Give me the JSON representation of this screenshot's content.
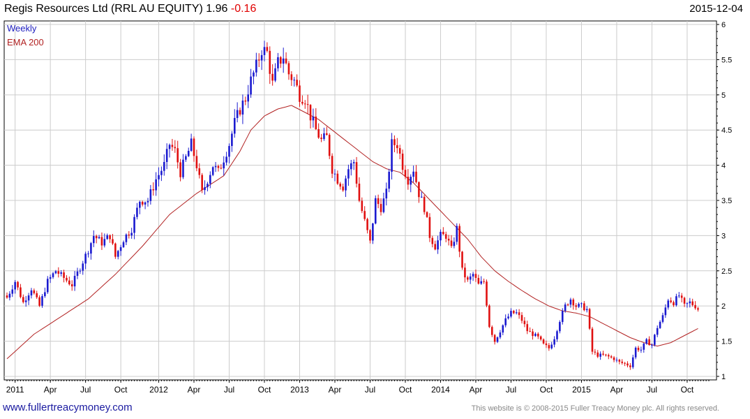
{
  "header": {
    "title": "Regis Resources Ltd (RRL AU EQUITY) 1.96",
    "change": "-0.16",
    "date": "2015-12-04"
  },
  "footer": {
    "link": "www.fullertreacymoney.com",
    "copyright": "This website is © 2008-2015 Fuller Treacy Money plc. All rights reserved."
  },
  "chart_data": {
    "type": "candlestick",
    "title": "Regis Resources Ltd (RRL AU EQUITY) 1.96 -0.16",
    "legend": [
      "Weekly",
      "EMA 200"
    ],
    "legend_placement": "top-left",
    "ylim": [
      0.95,
      6.05
    ],
    "y_ticks": [
      1,
      1.5,
      2,
      2.5,
      3,
      3.5,
      4,
      4.5,
      5,
      5.5,
      6
    ],
    "y_tick_labels": [
      "1",
      "1.5",
      "2",
      "2.5",
      "3",
      "3.5",
      "4",
      "4.5",
      "5",
      "5.5",
      "6"
    ],
    "x_range_weeks": [
      0,
      259
    ],
    "x_ticks": [
      {
        "label": "2011",
        "week": 3
      },
      {
        "label": "Apr",
        "week": 16
      },
      {
        "label": "Jul",
        "week": 29
      },
      {
        "label": "Oct",
        "week": 42
      },
      {
        "label": "2012",
        "week": 56
      },
      {
        "label": "Apr",
        "week": 69
      },
      {
        "label": "Jul",
        "week": 82
      },
      {
        "label": "Oct",
        "week": 95
      },
      {
        "label": "2013",
        "week": 108
      },
      {
        "label": "Apr",
        "week": 121
      },
      {
        "label": "Jul",
        "week": 134
      },
      {
        "label": "Oct",
        "week": 147
      },
      {
        "label": "2014",
        "week": 160
      },
      {
        "label": "Apr",
        "week": 173
      },
      {
        "label": "Jul",
        "week": 186
      },
      {
        "label": "Oct",
        "week": 199
      },
      {
        "label": "2015",
        "week": 212
      },
      {
        "label": "Apr",
        "week": 225
      },
      {
        "label": "Jul",
        "week": 238
      },
      {
        "label": "Oct",
        "week": 251
      }
    ],
    "series": [
      {
        "name": "Weekly",
        "kind": "close",
        "anchors": [
          [
            0,
            2.12
          ],
          [
            3,
            2.35
          ],
          [
            6,
            2.05
          ],
          [
            9,
            2.25
          ],
          [
            12,
            2.0
          ],
          [
            15,
            2.35
          ],
          [
            18,
            2.5
          ],
          [
            21,
            2.4
          ],
          [
            24,
            2.3
          ],
          [
            27,
            2.55
          ],
          [
            30,
            2.8
          ],
          [
            32,
            3.0
          ],
          [
            35,
            2.9
          ],
          [
            38,
            3.0
          ],
          [
            40,
            2.7
          ],
          [
            43,
            2.95
          ],
          [
            46,
            3.1
          ],
          [
            49,
            3.5
          ],
          [
            52,
            3.5
          ],
          [
            55,
            3.8
          ],
          [
            58,
            4.0
          ],
          [
            60,
            4.3
          ],
          [
            62,
            4.2
          ],
          [
            64,
            3.9
          ],
          [
            66,
            4.1
          ],
          [
            68,
            4.3
          ],
          [
            70,
            4.0
          ],
          [
            72,
            3.6
          ],
          [
            74,
            3.8
          ],
          [
            76,
            4.0
          ],
          [
            78,
            3.9
          ],
          [
            80,
            4.1
          ],
          [
            82,
            4.3
          ],
          [
            84,
            4.6
          ],
          [
            86,
            4.8
          ],
          [
            88,
            4.95
          ],
          [
            90,
            5.2
          ],
          [
            92,
            5.4
          ],
          [
            94,
            5.65
          ],
          [
            96,
            5.6
          ],
          [
            98,
            5.15
          ],
          [
            100,
            5.45
          ],
          [
            102,
            5.55
          ],
          [
            104,
            5.3
          ],
          [
            106,
            5.2
          ],
          [
            108,
            5.0
          ],
          [
            110,
            4.95
          ],
          [
            112,
            4.7
          ],
          [
            114,
            4.5
          ],
          [
            116,
            4.35
          ],
          [
            118,
            4.4
          ],
          [
            120,
            3.95
          ],
          [
            122,
            3.8
          ],
          [
            124,
            3.7
          ],
          [
            126,
            3.95
          ],
          [
            128,
            4.05
          ],
          [
            130,
            3.5
          ],
          [
            132,
            3.2
          ],
          [
            134,
            2.9
          ],
          [
            136,
            3.5
          ],
          [
            138,
            3.4
          ],
          [
            140,
            3.6
          ],
          [
            142,
            4.3
          ],
          [
            144,
            4.3
          ],
          [
            146,
            4.0
          ],
          [
            148,
            3.8
          ],
          [
            150,
            3.95
          ],
          [
            152,
            3.6
          ],
          [
            154,
            3.4
          ],
          [
            156,
            3.0
          ],
          [
            158,
            2.85
          ],
          [
            160,
            3.0
          ],
          [
            162,
            3.0
          ],
          [
            164,
            2.8
          ],
          [
            166,
            3.1
          ],
          [
            168,
            2.5
          ],
          [
            170,
            2.35
          ],
          [
            172,
            2.45
          ],
          [
            174,
            2.3
          ],
          [
            176,
            2.35
          ],
          [
            178,
            1.72
          ],
          [
            180,
            1.5
          ],
          [
            182,
            1.65
          ],
          [
            184,
            1.8
          ],
          [
            186,
            1.9
          ],
          [
            188,
            1.9
          ],
          [
            190,
            1.8
          ],
          [
            192,
            1.65
          ],
          [
            194,
            1.6
          ],
          [
            196,
            1.55
          ],
          [
            198,
            1.45
          ],
          [
            200,
            1.4
          ],
          [
            202,
            1.55
          ],
          [
            204,
            1.8
          ],
          [
            206,
            2.0
          ],
          [
            208,
            2.1
          ],
          [
            210,
            2.0
          ],
          [
            212,
            2.0
          ],
          [
            214,
            1.95
          ],
          [
            216,
            1.35
          ],
          [
            218,
            1.3
          ],
          [
            220,
            1.3
          ],
          [
            222,
            1.28
          ],
          [
            224,
            1.25
          ],
          [
            226,
            1.2
          ],
          [
            228,
            1.18
          ],
          [
            230,
            1.15
          ],
          [
            232,
            1.4
          ],
          [
            234,
            1.38
          ],
          [
            236,
            1.5
          ],
          [
            238,
            1.45
          ],
          [
            240,
            1.7
          ],
          [
            242,
            1.85
          ],
          [
            244,
            2.1
          ],
          [
            246,
            2.05
          ],
          [
            248,
            2.15
          ],
          [
            250,
            2.0
          ],
          [
            252,
            2.05
          ],
          [
            254,
            2.0
          ],
          [
            255,
            1.96
          ]
        ]
      },
      {
        "name": "EMA 200",
        "color": "#b22222",
        "anchors": [
          [
            0,
            1.25
          ],
          [
            10,
            1.6
          ],
          [
            20,
            1.85
          ],
          [
            30,
            2.1
          ],
          [
            40,
            2.45
          ],
          [
            50,
            2.85
          ],
          [
            60,
            3.3
          ],
          [
            70,
            3.6
          ],
          [
            80,
            3.85
          ],
          [
            86,
            4.2
          ],
          [
            90,
            4.5
          ],
          [
            95,
            4.7
          ],
          [
            100,
            4.8
          ],
          [
            105,
            4.85
          ],
          [
            110,
            4.75
          ],
          [
            115,
            4.65
          ],
          [
            120,
            4.5
          ],
          [
            125,
            4.35
          ],
          [
            130,
            4.2
          ],
          [
            135,
            4.05
          ],
          [
            140,
            3.95
          ],
          [
            145,
            3.9
          ],
          [
            150,
            3.75
          ],
          [
            155,
            3.55
          ],
          [
            160,
            3.35
          ],
          [
            165,
            3.15
          ],
          [
            170,
            2.95
          ],
          [
            175,
            2.7
          ],
          [
            180,
            2.5
          ],
          [
            185,
            2.35
          ],
          [
            190,
            2.22
          ],
          [
            195,
            2.1
          ],
          [
            200,
            2.0
          ],
          [
            205,
            1.93
          ],
          [
            210,
            1.9
          ],
          [
            215,
            1.85
          ],
          [
            220,
            1.75
          ],
          [
            225,
            1.65
          ],
          [
            230,
            1.55
          ],
          [
            235,
            1.48
          ],
          [
            240,
            1.43
          ],
          [
            245,
            1.48
          ],
          [
            250,
            1.58
          ],
          [
            255,
            1.68
          ]
        ]
      }
    ]
  }
}
